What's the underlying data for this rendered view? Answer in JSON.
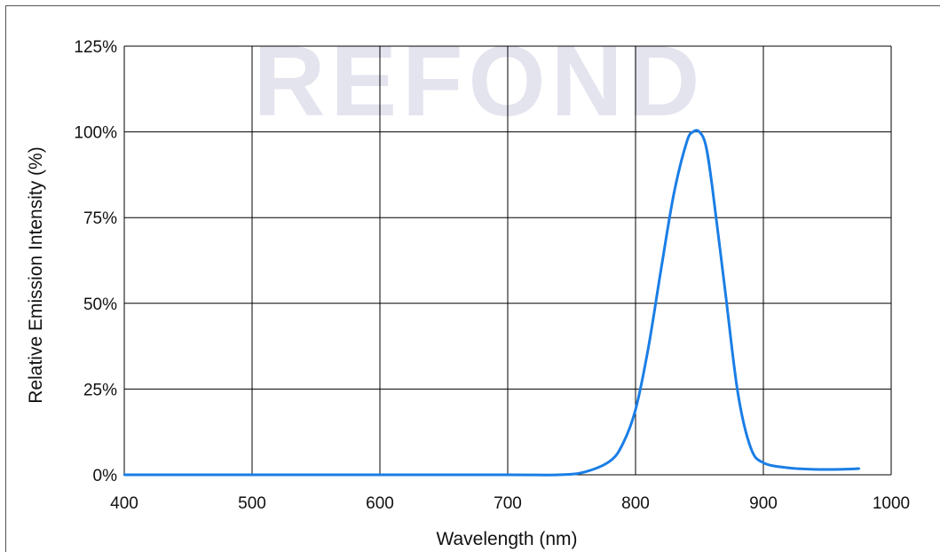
{
  "watermark": "REFOND",
  "chart_data": {
    "type": "line",
    "xlabel": "Wavelength  (nm)",
    "ylabel": "Relative Emission Intensity (%)",
    "xlim": [
      400,
      1000
    ],
    "ylim": [
      0,
      125
    ],
    "x_ticks": [
      "400",
      "500",
      "600",
      "700",
      "800",
      "900",
      "1000"
    ],
    "y_ticks": [
      "0%",
      "25%",
      "50%",
      "75%",
      "100%",
      "125%"
    ],
    "grid": true,
    "series": [
      {
        "color": "#1a7ee6",
        "x": [
          400,
          500,
          600,
          700,
          740,
          760,
          780,
          790,
          800,
          810,
          820,
          830,
          840,
          845,
          850,
          855,
          860,
          870,
          880,
          890,
          900,
          920,
          940,
          960,
          975
        ],
        "y": [
          0,
          0,
          0,
          0,
          0,
          0.8,
          4,
          9,
          19,
          37,
          60,
          82,
          97,
          100,
          100,
          96,
          84,
          54,
          24,
          8,
          3.5,
          2,
          1.6,
          1.6,
          1.8
        ]
      }
    ]
  }
}
